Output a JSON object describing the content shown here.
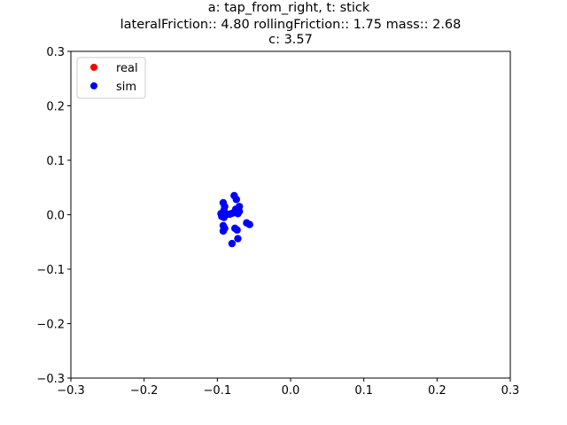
{
  "chart_data": {
    "type": "scatter",
    "title_lines": [
      "a: tap_from_right, t: stick",
      "lateralFriction:: 4.80 rollingFriction:: 1.75 mass:: 2.68",
      "c: 3.57"
    ],
    "xlabel": "",
    "ylabel": "",
    "xlim": [
      -0.3,
      0.3
    ],
    "ylim": [
      -0.3,
      0.3
    ],
    "xticks": [
      -0.3,
      -0.2,
      -0.1,
      0.0,
      0.1,
      0.2,
      0.3
    ],
    "yticks": [
      -0.3,
      -0.2,
      -0.1,
      0.0,
      0.1,
      0.2,
      0.3
    ],
    "xtick_labels": [
      "−0.3",
      "−0.2",
      "−0.1",
      "0.0",
      "0.1",
      "0.2",
      "0.3"
    ],
    "ytick_labels": [
      "−0.3",
      "−0.2",
      "−0.1",
      "0.0",
      "0.1",
      "0.2",
      "0.3"
    ],
    "grid": false,
    "legend_position": "top-left",
    "series": [
      {
        "name": "real",
        "color": "#ff0000",
        "points": []
      },
      {
        "name": "sim",
        "color": "#0000ff",
        "points": [
          [
            -0.077,
            0.035
          ],
          [
            -0.074,
            0.028
          ],
          [
            -0.092,
            0.022
          ],
          [
            -0.09,
            0.015
          ],
          [
            -0.07,
            0.015
          ],
          [
            -0.075,
            0.01
          ],
          [
            -0.091,
            0.008
          ],
          [
            -0.095,
            0.002
          ],
          [
            -0.088,
            0.0
          ],
          [
            -0.083,
            0.001
          ],
          [
            -0.079,
            0.003
          ],
          [
            -0.076,
            0.005
          ],
          [
            -0.072,
            0.002
          ],
          [
            -0.07,
            0.006
          ],
          [
            -0.094,
            -0.003
          ],
          [
            -0.091,
            -0.005
          ],
          [
            -0.06,
            -0.015
          ],
          [
            -0.056,
            -0.018
          ],
          [
            -0.092,
            -0.02
          ],
          [
            -0.09,
            -0.025
          ],
          [
            -0.076,
            -0.025
          ],
          [
            -0.073,
            -0.028
          ],
          [
            -0.092,
            -0.03
          ],
          [
            -0.072,
            -0.044
          ],
          [
            -0.08,
            -0.053
          ]
        ]
      }
    ]
  }
}
